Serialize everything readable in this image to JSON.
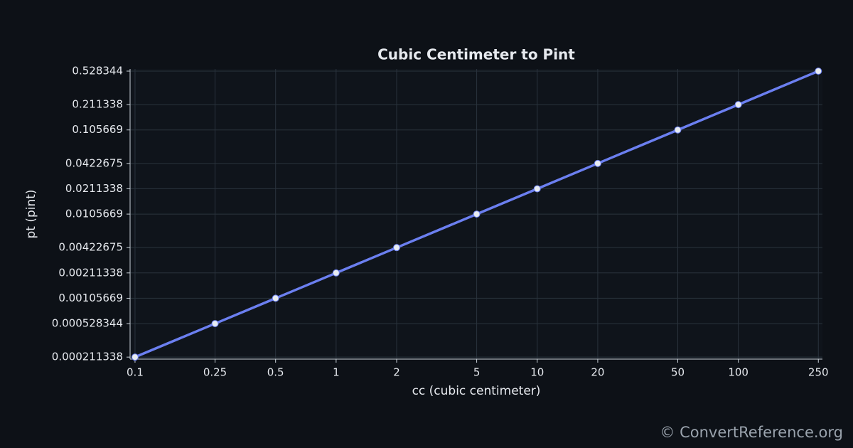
{
  "chart_data": {
    "type": "line",
    "title": "Cubic Centimeter to Pint",
    "x_label": "cc (cubic centimeter)",
    "y_label": "pt (pint)",
    "x": [
      0.1,
      0.25,
      0.5,
      1,
      2,
      5,
      10,
      20,
      50,
      100,
      250
    ],
    "series": [
      {
        "color": "#6b7ff0",
        "marker_color": "#e8ecf2",
        "values": [
          0.000211338,
          0.000528344,
          0.00105669,
          0.00211338,
          0.00422675,
          0.0105669,
          0.0211338,
          0.0422675,
          0.105669,
          0.211338,
          0.528344
        ]
      }
    ],
    "xlim": [
      0.0945,
      262
    ],
    "ylim": [
      0.0002,
      0.56
    ],
    "xticks": [
      0.1,
      0.25,
      0.5,
      1,
      2,
      5,
      10,
      20,
      50,
      100,
      250
    ],
    "yticks": [
      0.000211338,
      0.000528344,
      0.00105669,
      0.00211338,
      0.00422675,
      0.0105669,
      0.0211338,
      0.0422675,
      0.105669,
      0.211338,
      0.528344
    ],
    "x_log": true,
    "y_log": true,
    "grid": true
  },
  "watermark": "© ConvertReference.org"
}
